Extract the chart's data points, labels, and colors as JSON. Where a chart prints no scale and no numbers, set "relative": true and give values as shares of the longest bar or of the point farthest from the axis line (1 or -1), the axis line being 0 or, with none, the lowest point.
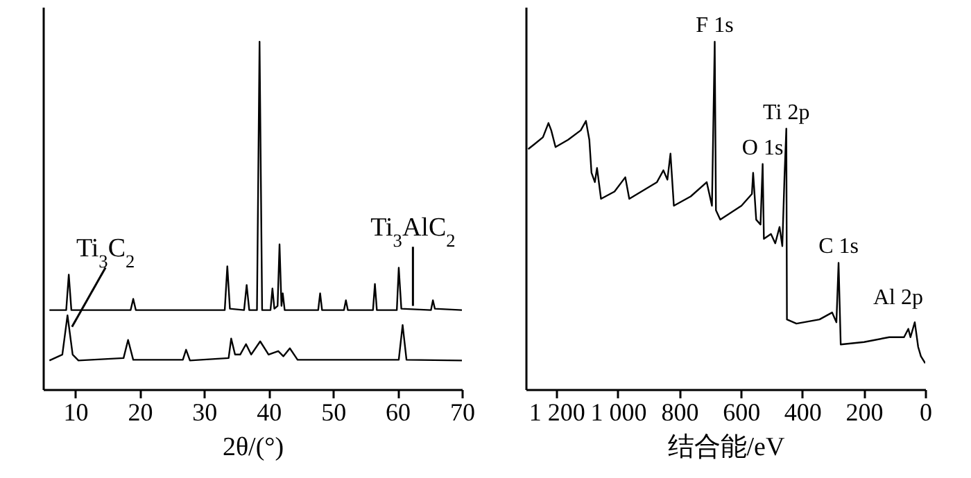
{
  "chart_data": [
    {
      "type": "line",
      "xlabel": "2θ/(°)",
      "relative": true,
      "xlim": [
        5,
        70
      ],
      "xticks": [
        10,
        20,
        30,
        40,
        50,
        60,
        70
      ],
      "line_style": "solid",
      "series": [
        {
          "color": "#000000",
          "x": [
            6,
            8.6,
            9.0,
            9.4,
            18.6,
            19,
            19.4,
            33.2,
            33.6,
            34,
            36.2,
            36.6,
            37,
            38.2,
            38.6,
            39.0,
            40.3,
            40.6,
            40.9,
            41.4,
            41.7,
            42.0,
            42.2,
            42.5,
            47.7,
            48,
            48.3,
            51.7,
            52,
            52.3,
            56.2,
            56.5,
            56.8,
            59.9,
            60.2,
            60.6,
            65.2,
            65.5,
            65.8,
            70
          ],
          "values": [
            0.228,
            0.228,
            0.33,
            0.228,
            0.228,
            0.26,
            0.228,
            0.228,
            0.354,
            0.232,
            0.228,
            0.3,
            0.228,
            0.228,
            1.0,
            0.228,
            0.228,
            0.29,
            0.232,
            0.24,
            0.417,
            0.24,
            0.276,
            0.228,
            0.228,
            0.276,
            0.228,
            0.228,
            0.256,
            0.228,
            0.228,
            0.303,
            0.228,
            0.228,
            0.35,
            0.232,
            0.228,
            0.256,
            0.232,
            0.228
          ]
        },
        {
          "color": "#000000",
          "x": [
            6,
            8,
            8.8,
            9.6,
            10.5,
            17.5,
            18.2,
            19,
            26.7,
            27.2,
            27.8,
            33.8,
            34.2,
            34.8,
            35.6,
            36.5,
            37.3,
            38.7,
            40,
            41.5,
            42.3,
            43.3,
            44.5,
            60.2,
            60.8,
            61.4,
            70
          ],
          "values": [
            0.083,
            0.1,
            0.213,
            0.1,
            0.083,
            0.09,
            0.142,
            0.085,
            0.085,
            0.114,
            0.083,
            0.09,
            0.146,
            0.1,
            0.1,
            0.13,
            0.1,
            0.138,
            0.1,
            0.11,
            0.095,
            0.118,
            0.085,
            0.085,
            0.185,
            0.085,
            0.083
          ]
        }
      ],
      "annotations": [
        {
          "text": "Ti$_{3}$C$_{2}$",
          "x": 9.5,
          "y": 0.18
        },
        {
          "text": "Ti$_{3}$AlC$_{2}$",
          "x": 62.4,
          "y": 0.24
        }
      ]
    },
    {
      "type": "line",
      "xlabel": "结合能/eV",
      "relative": true,
      "xlim": [
        1300,
        0
      ],
      "xticks": [
        {
          "value": 1200,
          "label": "1 200"
        },
        {
          "value": 1000,
          "label": "1 000"
        },
        800,
        600,
        400,
        200,
        0
      ],
      "line_style": "solid",
      "series": [
        {
          "color": "#000000",
          "x": [
            1292,
            1272,
            1244,
            1226,
            1217,
            1203,
            1162,
            1121,
            1104,
            1093,
            1086,
            1075,
            1068,
            1055,
            1011,
            976,
            963,
            873,
            852,
            839,
            829,
            818,
            763,
            711,
            694,
            685,
            681,
            667,
            598,
            564,
            560,
            550,
            536,
            529,
            525,
            502,
            488,
            474,
            465,
            458,
            452,
            450,
            419,
            344,
            303,
            289,
            282,
            275,
            199,
            117,
            69,
            55,
            48,
            34,
            23,
            14,
            0
          ],
          "values": [
            0.691,
            0.705,
            0.725,
            0.766,
            0.745,
            0.697,
            0.718,
            0.745,
            0.772,
            0.718,
            0.623,
            0.596,
            0.637,
            0.548,
            0.569,
            0.61,
            0.548,
            0.596,
            0.63,
            0.603,
            0.678,
            0.528,
            0.555,
            0.596,
            0.528,
            1.0,
            0.515,
            0.488,
            0.528,
            0.562,
            0.623,
            0.488,
            0.474,
            0.648,
            0.433,
            0.447,
            0.42,
            0.467,
            0.412,
            0.61,
            0.75,
            0.201,
            0.189,
            0.201,
            0.221,
            0.193,
            0.364,
            0.129,
            0.136,
            0.15,
            0.15,
            0.174,
            0.15,
            0.193,
            0.122,
            0.095,
            0.075
          ]
        }
      ],
      "annotations": [
        {
          "text": "F 1s",
          "x": 685,
          "y": 1.0
        },
        {
          "text": "O 1s",
          "x": 529,
          "y": 0.648
        },
        {
          "text": "Ti 2p",
          "x": 452,
          "y": 0.75
        },
        {
          "text": "C 1s",
          "x": 282,
          "y": 0.364
        },
        {
          "text": "Al 2p",
          "x": 34,
          "y": 0.193
        }
      ]
    }
  ]
}
